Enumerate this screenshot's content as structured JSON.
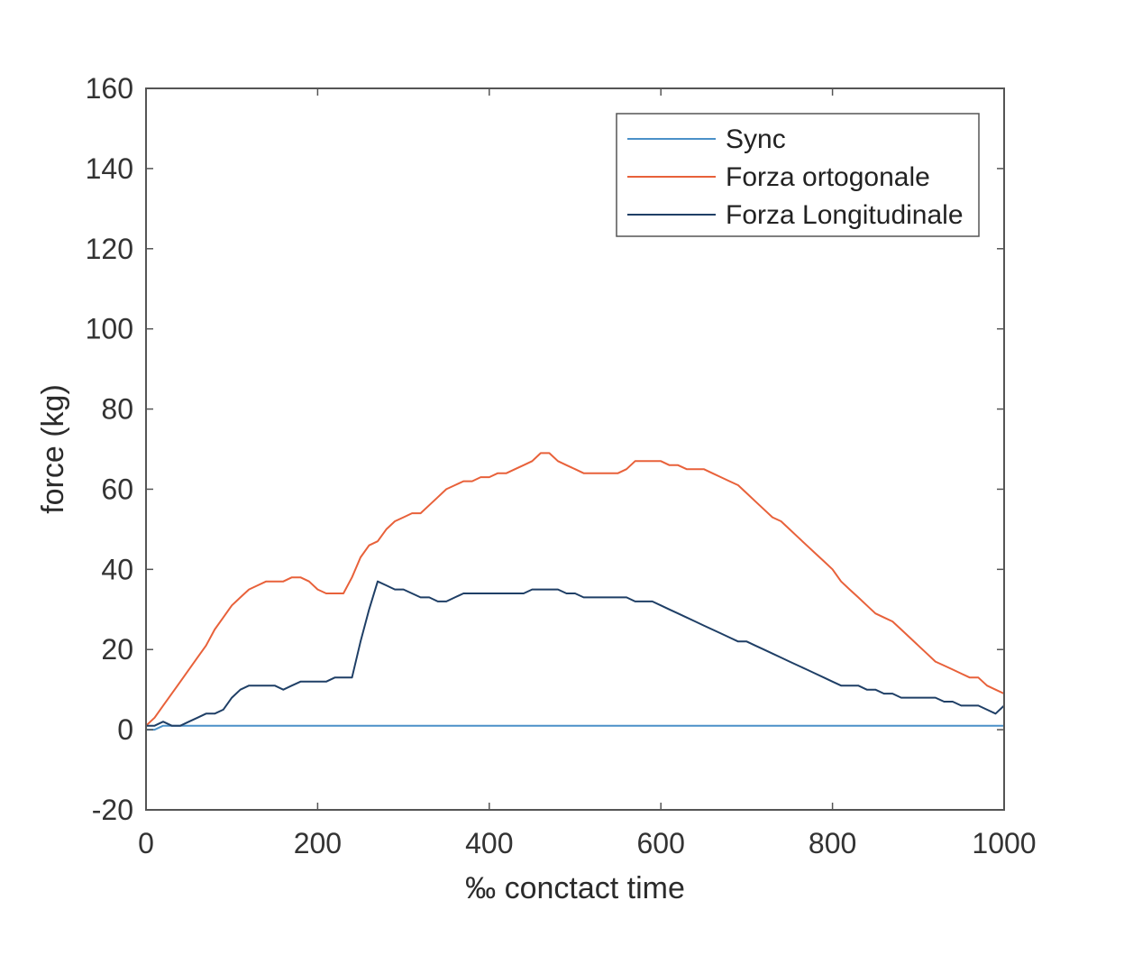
{
  "chart_data": {
    "type": "line",
    "title": "",
    "xlabel": "‰ conctact time",
    "ylabel": "force (kg)",
    "xlim": [
      0,
      1000
    ],
    "ylim": [
      -20,
      160
    ],
    "xticks": [
      0,
      200,
      400,
      600,
      800,
      1000
    ],
    "yticks": [
      -20,
      0,
      20,
      40,
      60,
      80,
      100,
      120,
      140,
      160
    ],
    "grid": false,
    "legend_position": "top-right",
    "series": [
      {
        "name": "Sync",
        "color": "#4a90c8",
        "x": [
          0,
          10,
          20,
          1000
        ],
        "y": [
          0,
          0,
          1,
          1
        ]
      },
      {
        "name": "Forza ortogonale",
        "color": "#e8613a",
        "x": [
          0,
          10,
          20,
          30,
          40,
          50,
          60,
          70,
          80,
          90,
          100,
          110,
          120,
          130,
          140,
          150,
          160,
          170,
          180,
          190,
          200,
          210,
          220,
          230,
          240,
          250,
          260,
          270,
          280,
          290,
          300,
          310,
          320,
          330,
          340,
          350,
          360,
          370,
          380,
          390,
          400,
          410,
          420,
          430,
          440,
          450,
          460,
          470,
          480,
          490,
          500,
          510,
          520,
          530,
          540,
          550,
          560,
          570,
          580,
          590,
          600,
          610,
          620,
          630,
          640,
          650,
          660,
          670,
          680,
          690,
          700,
          710,
          720,
          730,
          740,
          750,
          760,
          770,
          780,
          790,
          800,
          810,
          820,
          830,
          840,
          850,
          860,
          870,
          880,
          890,
          900,
          910,
          920,
          930,
          940,
          950,
          960,
          970,
          980,
          990,
          1000
        ],
        "y": [
          1,
          3,
          6,
          9,
          12,
          15,
          18,
          21,
          25,
          28,
          31,
          33,
          35,
          36,
          37,
          37,
          37,
          38,
          38,
          37,
          35,
          34,
          34,
          34,
          38,
          43,
          46,
          47,
          50,
          52,
          53,
          54,
          54,
          56,
          58,
          60,
          61,
          62,
          62,
          63,
          63,
          64,
          64,
          65,
          66,
          67,
          69,
          69,
          67,
          66,
          65,
          64,
          64,
          64,
          64,
          64,
          65,
          67,
          67,
          67,
          67,
          66,
          66,
          65,
          65,
          65,
          64,
          63,
          62,
          61,
          59,
          57,
          55,
          53,
          52,
          50,
          48,
          46,
          44,
          42,
          40,
          37,
          35,
          33,
          31,
          29,
          28,
          27,
          25,
          23,
          21,
          19,
          17,
          16,
          15,
          14,
          13,
          13,
          11,
          10,
          9
        ]
      },
      {
        "name": "Forza Longitudinale",
        "color": "#1f3f66",
        "x": [
          0,
          10,
          20,
          30,
          40,
          50,
          60,
          70,
          80,
          90,
          100,
          110,
          120,
          130,
          140,
          150,
          160,
          170,
          180,
          190,
          200,
          210,
          220,
          230,
          240,
          250,
          260,
          270,
          280,
          290,
          300,
          310,
          320,
          330,
          340,
          350,
          360,
          370,
          380,
          390,
          400,
          410,
          420,
          430,
          440,
          450,
          460,
          470,
          480,
          490,
          500,
          510,
          520,
          530,
          540,
          550,
          560,
          570,
          580,
          590,
          600,
          610,
          620,
          630,
          640,
          650,
          660,
          670,
          680,
          690,
          700,
          710,
          720,
          730,
          740,
          750,
          760,
          770,
          780,
          790,
          800,
          810,
          820,
          830,
          840,
          850,
          860,
          870,
          880,
          890,
          900,
          910,
          920,
          930,
          940,
          950,
          960,
          970,
          980,
          990,
          1000
        ],
        "y": [
          1,
          1,
          2,
          1,
          1,
          2,
          3,
          4,
          4,
          5,
          8,
          10,
          11,
          11,
          11,
          11,
          10,
          11,
          12,
          12,
          12,
          12,
          13,
          13,
          13,
          22,
          30,
          37,
          36,
          35,
          35,
          34,
          33,
          33,
          32,
          32,
          33,
          34,
          34,
          34,
          34,
          34,
          34,
          34,
          34,
          35,
          35,
          35,
          35,
          34,
          34,
          33,
          33,
          33,
          33,
          33,
          33,
          32,
          32,
          32,
          31,
          30,
          29,
          28,
          27,
          26,
          25,
          24,
          23,
          22,
          22,
          21,
          20,
          19,
          18,
          17,
          16,
          15,
          14,
          13,
          12,
          11,
          11,
          11,
          10,
          10,
          9,
          9,
          8,
          8,
          8,
          8,
          8,
          7,
          7,
          6,
          6,
          6,
          5,
          4,
          6
        ]
      }
    ]
  }
}
